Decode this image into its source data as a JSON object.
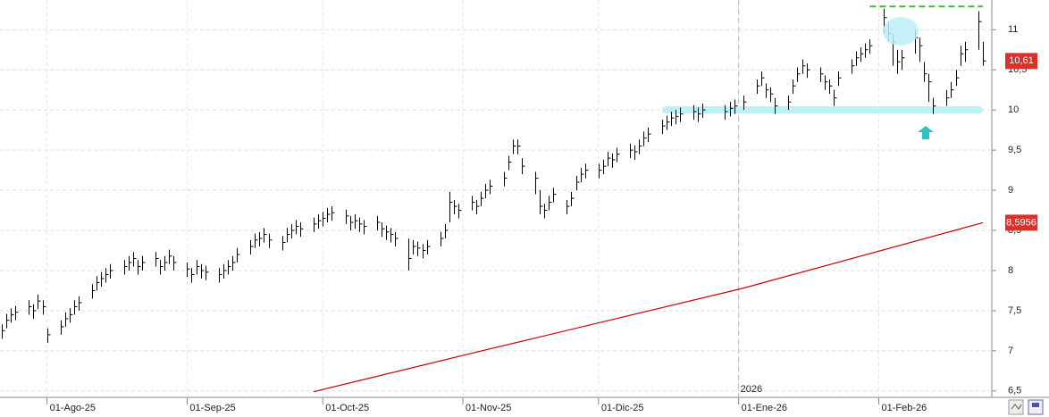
{
  "chart_data": {
    "type": "ohlc",
    "x": [
      "2025-07-22",
      "2025-07-23",
      "2025-07-24",
      "2025-07-25",
      "2025-07-28",
      "2025-07-29",
      "2025-07-30",
      "2025-07-31",
      "2025-08-01",
      "2025-08-04",
      "2025-08-05",
      "2025-08-06",
      "2025-08-07",
      "2025-08-08",
      "2025-08-11",
      "2025-08-12",
      "2025-08-13",
      "2025-08-14",
      "2025-08-15",
      "2025-08-18",
      "2025-08-19",
      "2025-08-20",
      "2025-08-21",
      "2025-08-22",
      "2025-08-25",
      "2025-08-26",
      "2025-08-27",
      "2025-08-28",
      "2025-08-29",
      "2025-09-01",
      "2025-09-02",
      "2025-09-03",
      "2025-09-04",
      "2025-09-05",
      "2025-09-08",
      "2025-09-09",
      "2025-09-10",
      "2025-09-11",
      "2025-09-12",
      "2025-09-15",
      "2025-09-16",
      "2025-09-17",
      "2025-09-18",
      "2025-09-19",
      "2025-09-22",
      "2025-09-23",
      "2025-09-24",
      "2025-09-25",
      "2025-09-26",
      "2025-09-29",
      "2025-09-30",
      "2025-10-01",
      "2025-10-02",
      "2025-10-03",
      "2025-10-06",
      "2025-10-07",
      "2025-10-08",
      "2025-10-09",
      "2025-10-10",
      "2025-10-13",
      "2025-10-14",
      "2025-10-15",
      "2025-10-16",
      "2025-10-17",
      "2025-10-20",
      "2025-10-21",
      "2025-10-22",
      "2025-10-23",
      "2025-10-24",
      "2025-10-27",
      "2025-10-28",
      "2025-10-29",
      "2025-10-30",
      "2025-10-31",
      "2025-11-03",
      "2025-11-04",
      "2025-11-05",
      "2025-11-06",
      "2025-11-07",
      "2025-11-10",
      "2025-11-11",
      "2025-11-12",
      "2025-11-13",
      "2025-11-14",
      "2025-11-17",
      "2025-11-18",
      "2025-11-19",
      "2025-11-20",
      "2025-11-21",
      "2025-11-24",
      "2025-11-25",
      "2025-11-26",
      "2025-11-27",
      "2025-11-28",
      "2025-12-01",
      "2025-12-02",
      "2025-12-03",
      "2025-12-04",
      "2025-12-05",
      "2025-12-08",
      "2025-12-09",
      "2025-12-10",
      "2025-12-11",
      "2025-12-12",
      "2025-12-15",
      "2025-12-16",
      "2025-12-17",
      "2025-12-18",
      "2025-12-19",
      "2025-12-22",
      "2025-12-23",
      "2025-12-24",
      "2025-12-29",
      "2025-12-30",
      "2025-12-31",
      "2026-01-02",
      "2026-01-05",
      "2026-01-06",
      "2026-01-07",
      "2026-01-08",
      "2026-01-09",
      "2026-01-12",
      "2026-01-13",
      "2026-01-14",
      "2026-01-15",
      "2026-01-16",
      "2026-01-19",
      "2026-01-20",
      "2026-01-21",
      "2026-01-22",
      "2026-01-23",
      "2026-01-26",
      "2026-01-27",
      "2026-01-28",
      "2026-01-29",
      "2026-01-30",
      "2026-02-02",
      "2026-02-03",
      "2026-02-04",
      "2026-02-05",
      "2026-02-06",
      "2026-02-09",
      "2026-02-10",
      "2026-02-11",
      "2026-02-12",
      "2026-02-13",
      "2026-02-16",
      "2026-02-17",
      "2026-02-18",
      "2026-02-19",
      "2026-02-20",
      "2026-02-23",
      "2026-02-24"
    ],
    "high": [
      7.33,
      7.46,
      7.53,
      7.56,
      7.63,
      7.58,
      7.7,
      7.63,
      7.28,
      7.38,
      7.48,
      7.53,
      7.63,
      7.68,
      7.83,
      7.93,
      7.98,
      8.03,
      8.08,
      8.13,
      8.18,
      8.23,
      8.13,
      8.18,
      8.23,
      8.13,
      8.18,
      8.26,
      8.18,
      8.1,
      8.03,
      8.13,
      8.08,
      8.06,
      8.03,
      8.08,
      8.13,
      8.18,
      8.28,
      8.38,
      8.46,
      8.48,
      8.53,
      8.46,
      8.43,
      8.53,
      8.58,
      8.63,
      8.6,
      8.66,
      8.7,
      8.73,
      8.78,
      8.8,
      8.76,
      8.68,
      8.7,
      8.66,
      8.63,
      8.68,
      8.6,
      8.56,
      8.53,
      8.48,
      8.4,
      8.38,
      8.36,
      8.33,
      8.38,
      8.48,
      8.58,
      8.98,
      8.88,
      8.83,
      8.93,
      8.88,
      8.98,
      9.08,
      9.13,
      9.23,
      9.43,
      9.63,
      9.63,
      9.4,
      9.23,
      9.0,
      8.83,
      8.93,
      9.03,
      8.88,
      8.98,
      9.18,
      9.28,
      9.33,
      9.33,
      9.38,
      9.48,
      9.46,
      9.53,
      9.58,
      9.56,
      9.63,
      9.73,
      9.78,
      9.88,
      9.93,
      9.98,
      10.0,
      10.03,
      10.06,
      10.03,
      10.08,
      10.06,
      10.1,
      10.13,
      10.18,
      10.38,
      10.48,
      10.33,
      10.28,
      10.15,
      10.18,
      10.38,
      10.53,
      10.63,
      10.58,
      10.53,
      10.43,
      10.38,
      10.25,
      10.48,
      10.63,
      10.73,
      10.78,
      10.83,
      10.88,
      11.26,
      11.1,
      10.95,
      10.75,
      10.75,
      11.0,
      10.9,
      10.6,
      10.45,
      10.15,
      10.25,
      10.35,
      10.5,
      10.8,
      10.85,
      11.23,
      10.85
    ],
    "low": [
      7.15,
      7.28,
      7.35,
      7.38,
      7.45,
      7.4,
      7.52,
      7.45,
      7.1,
      7.2,
      7.3,
      7.35,
      7.45,
      7.5,
      7.65,
      7.75,
      7.8,
      7.85,
      7.9,
      7.95,
      8.0,
      8.05,
      7.95,
      8.0,
      8.05,
      7.95,
      8.0,
      8.08,
      8.0,
      7.92,
      7.85,
      7.95,
      7.9,
      7.88,
      7.85,
      7.9,
      7.95,
      8.0,
      8.1,
      8.2,
      8.28,
      8.3,
      8.35,
      8.28,
      8.25,
      8.35,
      8.4,
      8.45,
      8.42,
      8.48,
      8.52,
      8.55,
      8.6,
      8.62,
      8.58,
      8.5,
      8.52,
      8.48,
      8.45,
      8.5,
      8.42,
      8.38,
      8.35,
      8.3,
      8.0,
      8.2,
      8.18,
      8.15,
      8.2,
      8.3,
      8.4,
      8.6,
      8.7,
      8.65,
      8.75,
      8.7,
      8.8,
      8.9,
      8.95,
      9.05,
      9.25,
      9.45,
      9.45,
      9.2,
      8.95,
      8.7,
      8.65,
      8.75,
      8.85,
      8.7,
      8.8,
      9.0,
      9.1,
      9.15,
      9.15,
      9.2,
      9.3,
      9.28,
      9.35,
      9.4,
      9.38,
      9.45,
      9.55,
      9.6,
      9.7,
      9.75,
      9.8,
      9.82,
      9.85,
      9.88,
      9.85,
      9.9,
      9.88,
      9.92,
      9.95,
      10.0,
      10.2,
      10.3,
      10.15,
      10.1,
      9.95,
      10.0,
      10.2,
      10.35,
      10.45,
      10.4,
      10.35,
      10.25,
      10.2,
      10.05,
      10.3,
      10.45,
      10.55,
      10.6,
      10.65,
      10.7,
      10.95,
      10.85,
      10.55,
      10.45,
      10.5,
      10.7,
      10.6,
      10.35,
      10.1,
      9.95,
      10.05,
      10.15,
      10.3,
      10.55,
      10.6,
      10.75,
      10.55
    ],
    "close": [
      7.25,
      7.38,
      7.45,
      7.48,
      7.55,
      7.5,
      7.62,
      7.55,
      7.2,
      7.3,
      7.4,
      7.45,
      7.55,
      7.6,
      7.75,
      7.85,
      7.9,
      7.95,
      8.0,
      8.05,
      8.1,
      8.15,
      8.05,
      8.1,
      8.15,
      8.05,
      8.1,
      8.18,
      8.1,
      8.02,
      7.95,
      8.05,
      8.0,
      7.98,
      7.95,
      8.0,
      8.05,
      8.1,
      8.2,
      8.3,
      8.38,
      8.4,
      8.45,
      8.38,
      8.35,
      8.45,
      8.5,
      8.55,
      8.52,
      8.58,
      8.62,
      8.65,
      8.7,
      8.72,
      8.68,
      8.6,
      8.62,
      8.58,
      8.55,
      8.6,
      8.52,
      8.48,
      8.45,
      8.4,
      8.15,
      8.3,
      8.28,
      8.25,
      8.3,
      8.4,
      8.5,
      8.85,
      8.8,
      8.75,
      8.85,
      8.8,
      8.9,
      9.0,
      9.05,
      9.15,
      9.35,
      9.55,
      9.55,
      9.3,
      9.15,
      8.8,
      8.75,
      8.85,
      8.95,
      8.8,
      8.9,
      9.1,
      9.2,
      9.25,
      9.25,
      9.3,
      9.4,
      9.38,
      9.45,
      9.5,
      9.48,
      9.55,
      9.65,
      9.7,
      9.8,
      9.85,
      9.9,
      9.92,
      9.95,
      9.98,
      9.95,
      10.0,
      9.98,
      10.02,
      10.05,
      10.1,
      10.3,
      10.4,
      10.25,
      10.2,
      10.05,
      10.1,
      10.3,
      10.45,
      10.55,
      10.5,
      10.45,
      10.35,
      10.3,
      10.15,
      10.4,
      10.55,
      10.65,
      10.7,
      10.75,
      10.8,
      11.15,
      10.95,
      10.85,
      10.6,
      10.65,
      10.9,
      10.8,
      10.45,
      10.35,
      10.05,
      10.15,
      10.25,
      10.4,
      10.7,
      10.75,
      11.1,
      10.61
    ],
    "color": "#000000",
    "last_price": {
      "value": 10.61,
      "label": "10,61",
      "color": "#d9312b"
    },
    "moving_average": {
      "color": "#cc0000",
      "x": [
        "2025-09-29",
        "2025-11-03",
        "2026-01-02",
        "2026-02-24"
      ],
      "values": [
        6.49,
        6.97,
        7.78,
        8.5956
      ],
      "last_label": "8,5956"
    },
    "annotations": [
      {
        "kind": "resistance",
        "value": 11.29,
        "x": [
          "2026-01-30",
          "2026-02-24"
        ],
        "color": "#22cc22"
      },
      {
        "kind": "support",
        "value": 10.0,
        "x": [
          "2025-12-15",
          "2026-02-24"
        ],
        "color": "#bdf0f5"
      }
    ],
    "year_marker": {
      "date": "2026-01-01",
      "label": "2026"
    },
    "xlim": [
      "2025-07-22",
      "2026-02-26"
    ],
    "xticks": [
      {
        "value": "2025-08-01",
        "label": "01-Ago-25"
      },
      {
        "value": "2025-09-01",
        "label": "01-Sep-25"
      },
      {
        "value": "2025-10-01",
        "label": "01-Oct-25"
      },
      {
        "value": "2025-11-01",
        "label": "01-Nov-25"
      },
      {
        "value": "2025-12-01",
        "label": "01-Dic-25"
      },
      {
        "value": "2026-01-01",
        "label": "01-Ene-26"
      },
      {
        "value": "2026-02-01",
        "label": "01-Feb-26"
      }
    ],
    "ylim": [
      6.42,
      11.37
    ],
    "yticks": [
      {
        "value": 6.5,
        "label": "6,5"
      },
      7,
      {
        "value": 7.5,
        "label": "7,5"
      },
      8,
      {
        "value": 8.5,
        "label": "8,5"
      },
      9,
      {
        "value": 9.5,
        "label": "9,5"
      },
      10,
      {
        "value": 10.5,
        "label": "10,5"
      },
      11
    ],
    "grid": true
  }
}
